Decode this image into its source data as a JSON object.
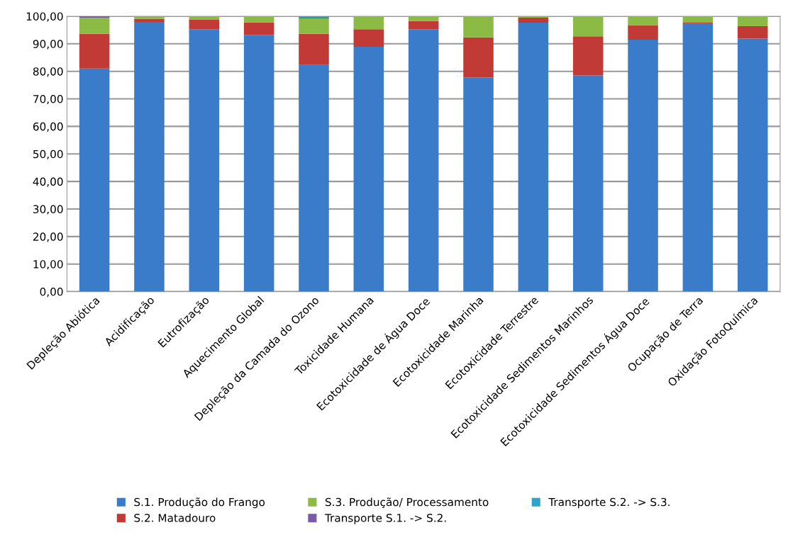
{
  "chart_data": {
    "type": "bar",
    "stacked": true,
    "categories": [
      "Depleção Abiótica",
      "Acidificação",
      "Eutrofização",
      "Aquecimento Global",
      "Depleção da Camada do Ozono",
      "Toxicidade Humana",
      "Ecotoxicidade de Água Doce",
      "Ecotoxicidade Marinha",
      "Ecotoxicidade Terrestre",
      "Ecotoxicidade Sedimentos Marinhos",
      "Ecotoxicidade Sedimentos Água Doce",
      "Ocupação de Terra",
      "Oxidação FotoQuímica"
    ],
    "series": [
      {
        "name": "S.1. Produção do Frango",
        "color": "#3a7cc9",
        "values": [
          81.0,
          97.9,
          95.3,
          93.2,
          82.3,
          88.9,
          95.3,
          77.7,
          97.7,
          78.5,
          91.5,
          97.2,
          91.9
        ]
      },
      {
        "name": "S.2. Matadouro",
        "color": "#c13a35",
        "values": [
          12.6,
          1.2,
          3.4,
          4.6,
          11.3,
          6.4,
          3.0,
          14.6,
          1.8,
          14.2,
          5.3,
          0.5,
          4.5
        ]
      },
      {
        "name": "S.3. Produção/ Processamento",
        "color": "#8cbb45",
        "values": [
          5.8,
          0.9,
          1.3,
          2.2,
          5.6,
          4.7,
          1.7,
          7.7,
          0.5,
          7.3,
          3.2,
          2.3,
          3.6
        ]
      },
      {
        "name": "Transporte S.1. -> S.2.",
        "color": "#7a5ca6",
        "values": [
          0.6,
          0,
          0,
          0,
          0.3,
          0,
          0,
          0,
          0,
          0,
          0,
          0,
          0
        ]
      },
      {
        "name": "Transporte S.2. -> S.3.",
        "color": "#2ea5c6",
        "values": [
          0,
          0,
          0,
          0,
          0.5,
          0,
          0,
          0,
          0,
          0,
          0,
          0,
          0
        ]
      }
    ],
    "ylim": [
      0,
      100
    ],
    "yticks": [
      {
        "value": 0,
        "label": "0,00"
      },
      {
        "value": 10,
        "label": "10,00"
      },
      {
        "value": 20,
        "label": "20,00"
      },
      {
        "value": 30,
        "label": "30,00"
      },
      {
        "value": 40,
        "label": "40,00"
      },
      {
        "value": 50,
        "label": "50,00"
      },
      {
        "value": 60,
        "label": "60,00"
      },
      {
        "value": 70,
        "label": "70,00"
      },
      {
        "value": 80,
        "label": "80,00"
      },
      {
        "value": 90,
        "label": "90,00"
      },
      {
        "value": 100,
        "label": "100,00"
      }
    ],
    "grid": "y",
    "legend": "bottom"
  }
}
